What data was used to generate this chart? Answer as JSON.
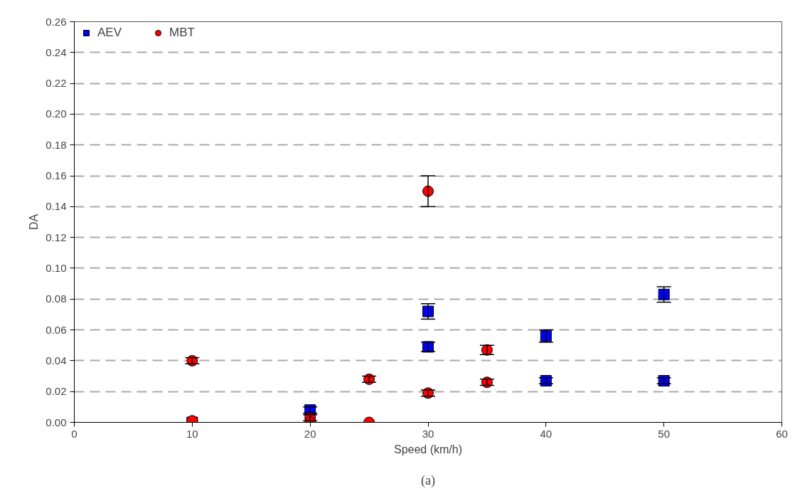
{
  "chart_data": {
    "type": "scatter",
    "xlabel": "Speed (km/h)",
    "ylabel": "DA",
    "xlim": [
      0,
      60
    ],
    "xticks": [
      0,
      10,
      20,
      30,
      40,
      50,
      60
    ],
    "ylim": [
      0,
      0.26
    ],
    "yticks": [
      {
        "value": 0,
        "label": "0.00"
      },
      {
        "value": 0.02,
        "label": "0.02"
      },
      {
        "value": 0.04,
        "label": "0.04"
      },
      {
        "value": 0.06,
        "label": "0.06"
      },
      {
        "value": 0.08,
        "label": "0.08"
      },
      {
        "value": 0.1,
        "label": "0.10"
      },
      {
        "value": 0.12,
        "label": "0.12"
      },
      {
        "value": 0.14,
        "label": "0.14"
      },
      {
        "value": 0.16,
        "label": "0.16"
      },
      {
        "value": 0.18,
        "label": "0.18"
      },
      {
        "value": 0.2,
        "label": "0.20"
      },
      {
        "value": 0.22,
        "label": "0.22"
      },
      {
        "value": 0.24,
        "label": "0.24"
      },
      {
        "value": 0.26,
        "label": "0.26"
      }
    ],
    "grid": "y",
    "legend": "top left",
    "series": [
      {
        "name": "AEV",
        "color": "#0000ff",
        "marker": "square",
        "x": [
          10,
          20,
          30,
          30,
          40,
          40,
          50,
          50
        ],
        "values": [
          0.0,
          0.008,
          0.072,
          0.049,
          0.056,
          0.027,
          0.083,
          0.027
        ],
        "errors": [
          null,
          0.002,
          0.005,
          0.003,
          0.004,
          0.002,
          0.005,
          0.002
        ]
      },
      {
        "name": "MBT",
        "color": "#ff0000",
        "marker": "circle",
        "x": [
          10,
          10,
          20,
          20,
          25,
          25,
          30,
          30,
          35,
          35
        ],
        "values": [
          0.04,
          0.001,
          0.003,
          0.0,
          0.028,
          0.0,
          0.15,
          0.019,
          0.047,
          0.026
        ],
        "errors": [
          0.002,
          null,
          0.002,
          null,
          0.002,
          null,
          0.01,
          0.002,
          0.003,
          0.002
        ]
      }
    ],
    "annotations": [
      "(a)"
    ]
  }
}
